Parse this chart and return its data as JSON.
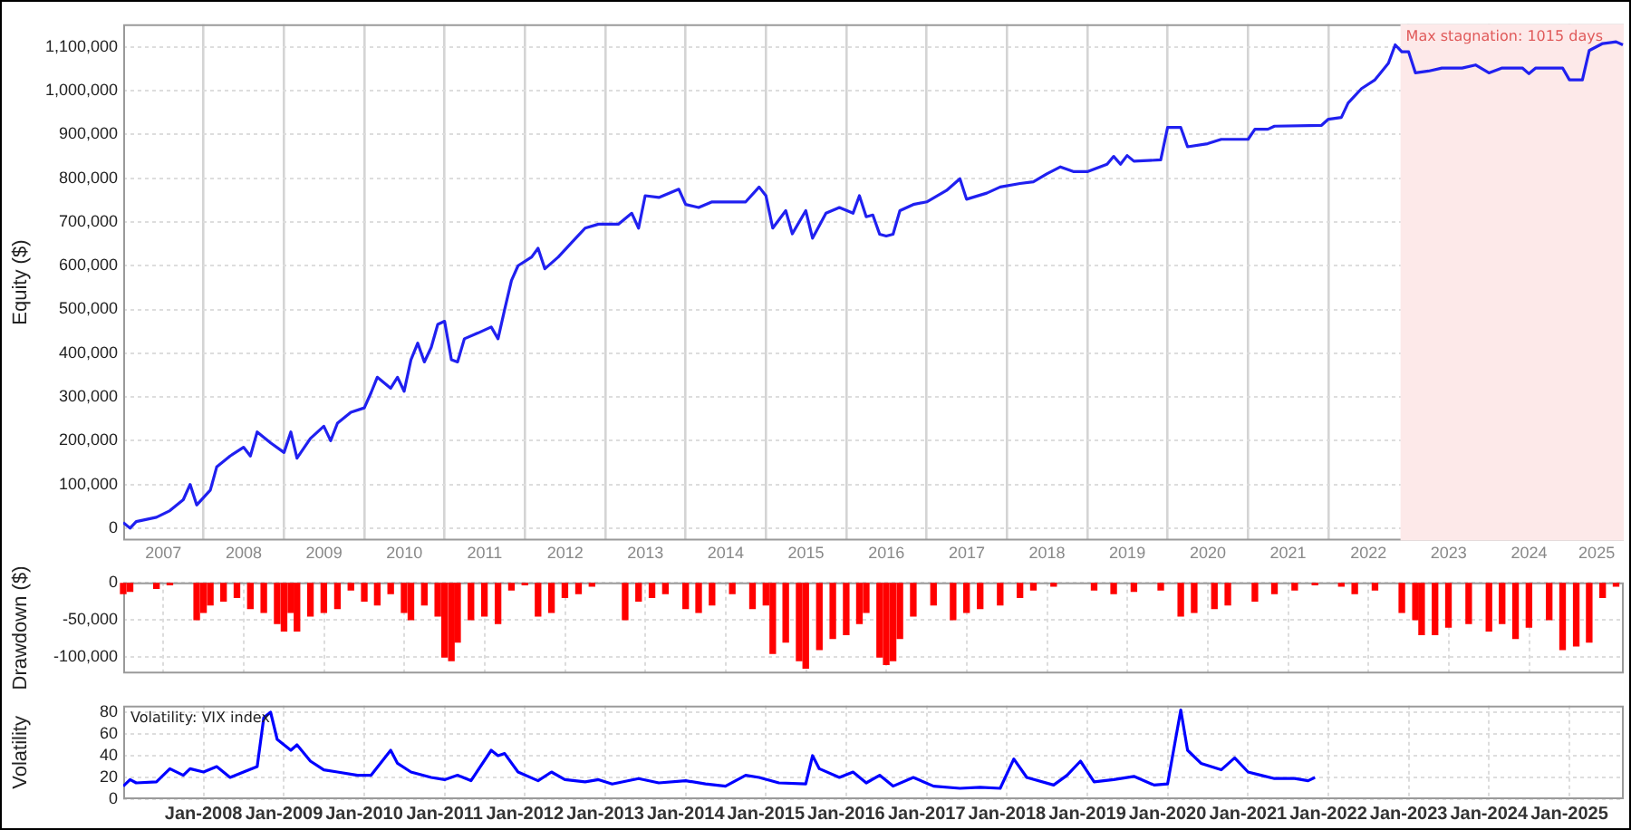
{
  "chart_data": [
    {
      "type": "line",
      "ylabel": "Equity ($)",
      "marker": "none",
      "grid": true,
      "xlim": [
        "2007-01-01",
        "2025-09-05"
      ],
      "xticks": [
        {
          "value": "2007-07-02",
          "label": "2007"
        },
        {
          "value": "2008-01-01",
          "label": null
        },
        {
          "value": "2008-07-02",
          "label": "2008"
        },
        {
          "value": "2009-01-01",
          "label": null
        },
        {
          "value": "2009-07-02",
          "label": "2009"
        },
        {
          "value": "2010-01-01",
          "label": null
        },
        {
          "value": "2010-07-02",
          "label": "2010"
        },
        {
          "value": "2011-01-01",
          "label": null
        },
        {
          "value": "2011-07-02",
          "label": "2011"
        },
        {
          "value": "2012-01-01",
          "label": null
        },
        {
          "value": "2012-07-02",
          "label": "2012"
        },
        {
          "value": "2013-01-01",
          "label": null
        },
        {
          "value": "2013-07-02",
          "label": "2013"
        },
        {
          "value": "2014-01-01",
          "label": null
        },
        {
          "value": "2014-07-02",
          "label": "2014"
        },
        {
          "value": "2015-01-01",
          "label": null
        },
        {
          "value": "2015-07-02",
          "label": "2015"
        },
        {
          "value": "2016-01-01",
          "label": null
        },
        {
          "value": "2016-07-02",
          "label": "2016"
        },
        {
          "value": "2017-01-01",
          "label": null
        },
        {
          "value": "2017-07-02",
          "label": "2017"
        },
        {
          "value": "2018-01-01",
          "label": null
        },
        {
          "value": "2018-07-02",
          "label": "2018"
        },
        {
          "value": "2019-01-01",
          "label": null
        },
        {
          "value": "2019-07-02",
          "label": "2019"
        },
        {
          "value": "2020-01-01",
          "label": null
        },
        {
          "value": "2020-07-02",
          "label": "2020"
        },
        {
          "value": "2021-01-01",
          "label": null
        },
        {
          "value": "2021-07-02",
          "label": "2021"
        },
        {
          "value": "2022-01-01",
          "label": null
        },
        {
          "value": "2022-07-02",
          "label": "2022"
        },
        {
          "value": "2023-01-01",
          "label": null
        },
        {
          "value": "2023-07-02",
          "label": "2023"
        },
        {
          "value": "2024-01-01",
          "label": null
        },
        {
          "value": "2024-07-02",
          "label": "2024"
        },
        {
          "value": "2025-01-01",
          "label": null
        },
        {
          "value": "2025-05-05",
          "label": "2025"
        }
      ],
      "ylim": [
        -28000,
        1152000
      ],
      "yticks": [
        0,
        {
          "value": 100000,
          "label": "100,000"
        },
        {
          "value": 200000,
          "label": "200,000"
        },
        {
          "value": 300000,
          "label": "300,000"
        },
        {
          "value": 400000,
          "label": "400,000"
        },
        {
          "value": 500000,
          "label": "500,000"
        },
        {
          "value": 600000,
          "label": "600,000"
        },
        {
          "value": 700000,
          "label": "700,000"
        },
        {
          "value": 800000,
          "label": "800,000"
        },
        {
          "value": 900000,
          "label": "900,000"
        },
        {
          "value": 1000000,
          "label": "1,000,000"
        },
        {
          "value": 1100000,
          "label": "1,100,000"
        }
      ],
      "bands": [
        {
          "axis": "x",
          "from": "2022-11-25",
          "to": "2025-09-05",
          "label": "Max stagnation: 1015 days",
          "color": "#fde9e9"
        }
      ],
      "series": [
        {
          "color": "#2020f0",
          "x": [
            "2007-01",
            "2007-02",
            "2007-03",
            "2007-06",
            "2007-08",
            "2007-10",
            "2007-11",
            "2007-12",
            "2008-02",
            "2008-03",
            "2008-05",
            "2008-07",
            "2008-08",
            "2008-09",
            "2008-11",
            "2009-01",
            "2009-02",
            "2009-03",
            "2009-05",
            "2009-07",
            "2009-08",
            "2009-09",
            "2009-11",
            "2010-01",
            "2010-02",
            "2010-03",
            "2010-05",
            "2010-06",
            "2010-07",
            "2010-08",
            "2010-09",
            "2010-10",
            "2010-11",
            "2010-12",
            "2011-01",
            "2011-02",
            "2011-03",
            "2011-04",
            "2011-06",
            "2011-08",
            "2011-09",
            "2011-10",
            "2011-11",
            "2011-12",
            "2012-02",
            "2012-03",
            "2012-04",
            "2012-06",
            "2012-08",
            "2012-10",
            "2012-12",
            "2013-03",
            "2013-05",
            "2013-06",
            "2013-07",
            "2013-09",
            "2013-12",
            "2014-01",
            "2014-03",
            "2014-05",
            "2014-10",
            "2014-12",
            "2015-01",
            "2015-02",
            "2015-04",
            "2015-05",
            "2015-07",
            "2015-08",
            "2015-10",
            "2015-12",
            "2016-02",
            "2016-03",
            "2016-04",
            "2016-05",
            "2016-06",
            "2016-07",
            "2016-08",
            "2016-09",
            "2016-11",
            "2017-01",
            "2017-04",
            "2017-06",
            "2017-07",
            "2017-10",
            "2017-12",
            "2018-03",
            "2018-05",
            "2018-07",
            "2018-09",
            "2018-11",
            "2019-01",
            "2019-04",
            "2019-05",
            "2019-06",
            "2019-07",
            "2019-08",
            "2019-12",
            "2020-01",
            "2020-03",
            "2020-04",
            "2020-07",
            "2020-09",
            "2021-01",
            "2021-02",
            "2021-04",
            "2021-05",
            "2021-12",
            "2022-01",
            "2022-03",
            "2022-04",
            "2022-06",
            "2022-08",
            "2022-10",
            "2022-11",
            "2022-12",
            "2023-01",
            "2023-02",
            "2023-04",
            "2023-06",
            "2023-09",
            "2023-11",
            "2024-01",
            "2024-03",
            "2024-06",
            "2024-07",
            "2024-08",
            "2024-12",
            "2025-01",
            "2025-03",
            "2025-04",
            "2025-06",
            "2025-08",
            "2025-09"
          ],
          "values": [
            13000,
            0,
            15000,
            25000,
            40000,
            65000,
            100000,
            53000,
            87000,
            140000,
            165000,
            185000,
            165000,
            220000,
            195000,
            173000,
            220000,
            160000,
            205000,
            233000,
            200000,
            240000,
            265000,
            275000,
            310000,
            345000,
            320000,
            345000,
            313000,
            385000,
            423000,
            380000,
            413000,
            466000,
            473000,
            385000,
            380000,
            433000,
            446000,
            460000,
            433000,
            500000,
            566000,
            600000,
            620000,
            640000,
            593000,
            620000,
            653000,
            686000,
            695000,
            695000,
            720000,
            686000,
            760000,
            756000,
            775000,
            740000,
            733000,
            746000,
            746000,
            780000,
            760000,
            686000,
            726000,
            673000,
            726000,
            663000,
            720000,
            733000,
            720000,
            760000,
            712000,
            716000,
            672000,
            668000,
            672000,
            726000,
            740000,
            746000,
            772000,
            799000,
            752000,
            766000,
            780000,
            788000,
            792000,
            810000,
            826000,
            815000,
            815000,
            832000,
            850000,
            832000,
            852000,
            839000,
            842000,
            916000,
            916000,
            872000,
            879000,
            889000,
            889000,
            912000,
            912000,
            919000,
            921000,
            935000,
            939000,
            972000,
            1005000,
            1025000,
            1063000,
            1105000,
            1089000,
            1089000,
            1041000,
            1045000,
            1052000,
            1052000,
            1059000,
            1041000,
            1052000,
            1052000,
            1039000,
            1052000,
            1052000,
            1025000,
            1025000,
            1092000,
            1108000,
            1112000,
            1105000
          ]
        }
      ]
    },
    {
      "type": "bar",
      "ylabel": "Drawdown ($)",
      "grid": true,
      "tick_labels": "y",
      "xlim": [
        "2007-01-01",
        "2025-09-05"
      ],
      "xticks": [
        {
          "value": "2008-01-01",
          "label": null
        },
        {
          "value": "2009-01-01",
          "label": null
        },
        {
          "value": "2010-01-01",
          "label": null
        },
        {
          "value": "2011-01-01",
          "label": null
        },
        {
          "value": "2012-01-01",
          "label": null
        },
        {
          "value": "2013-01-01",
          "label": null
        },
        {
          "value": "2014-01-01",
          "label": null
        },
        {
          "value": "2015-01-01",
          "label": null
        },
        {
          "value": "2016-01-01",
          "label": null
        },
        {
          "value": "2017-01-01",
          "label": null
        },
        {
          "value": "2018-01-01",
          "label": null
        },
        {
          "value": "2019-01-01",
          "label": null
        },
        {
          "value": "2020-01-01",
          "label": null
        },
        {
          "value": "2021-01-01",
          "label": null
        },
        {
          "value": "2022-01-01",
          "label": null
        },
        {
          "value": "2023-01-01",
          "label": null
        },
        {
          "value": "2024-01-01",
          "label": null
        },
        {
          "value": "2025-01-01",
          "label": null
        }
      ],
      "ylim": [
        -122000,
        0
      ],
      "yticks": [
        0,
        {
          "value": -50000,
          "label": "-50,000"
        },
        {
          "value": -100000,
          "label": "-100,000"
        }
      ],
      "series": [
        {
          "color": "#ff0000",
          "x": [
            "2007-01",
            "2007-02",
            "2007-06",
            "2007-08",
            "2007-12",
            "2008-01",
            "2008-02",
            "2008-04",
            "2008-06",
            "2008-08",
            "2008-10",
            "2008-12",
            "2009-01",
            "2009-02",
            "2009-03",
            "2009-05",
            "2009-07",
            "2009-09",
            "2009-11",
            "2010-01",
            "2010-03",
            "2010-05",
            "2010-07",
            "2010-08",
            "2010-10",
            "2010-12",
            "2011-01",
            "2011-02",
            "2011-03",
            "2011-05",
            "2011-07",
            "2011-09",
            "2011-11",
            "2012-01",
            "2012-03",
            "2012-05",
            "2012-07",
            "2012-09",
            "2012-11",
            "2013-04",
            "2013-06",
            "2013-08",
            "2013-10",
            "2014-01",
            "2014-03",
            "2014-05",
            "2014-08",
            "2014-11",
            "2015-01",
            "2015-02",
            "2015-04",
            "2015-06",
            "2015-07",
            "2015-09",
            "2015-11",
            "2016-01",
            "2016-03",
            "2016-04",
            "2016-06",
            "2016-07",
            "2016-08",
            "2016-09",
            "2016-11",
            "2017-02",
            "2017-05",
            "2017-07",
            "2017-09",
            "2017-12",
            "2018-03",
            "2018-05",
            "2018-08",
            "2019-02",
            "2019-05",
            "2019-08",
            "2019-12",
            "2020-03",
            "2020-05",
            "2020-08",
            "2020-10",
            "2021-02",
            "2021-05",
            "2021-08",
            "2021-11",
            "2022-03",
            "2022-05",
            "2022-08",
            "2022-12",
            "2023-02",
            "2023-03",
            "2023-05",
            "2023-07",
            "2023-10",
            "2024-01",
            "2024-03",
            "2024-05",
            "2024-07",
            "2024-10",
            "2024-12",
            "2025-02",
            "2025-04",
            "2025-06",
            "2025-08"
          ],
          "values": [
            -15000,
            -12000,
            -8000,
            -3000,
            -50000,
            -40000,
            -30000,
            -25000,
            -20000,
            -35000,
            -40000,
            -55000,
            -65000,
            -40000,
            -65000,
            -45000,
            -40000,
            -35000,
            -10000,
            -25000,
            -30000,
            -15000,
            -40000,
            -50000,
            -30000,
            -45000,
            -100000,
            -105000,
            -80000,
            -50000,
            -45000,
            -55000,
            -10000,
            -3000,
            -45000,
            -40000,
            -20000,
            -15000,
            -5000,
            -50000,
            -25000,
            -20000,
            -15000,
            -35000,
            -40000,
            -30000,
            -15000,
            -35000,
            -30000,
            -95000,
            -80000,
            -105000,
            -115000,
            -90000,
            -75000,
            -70000,
            -55000,
            -40000,
            -100000,
            -110000,
            -105000,
            -75000,
            -45000,
            -30000,
            -50000,
            -40000,
            -35000,
            -30000,
            -20000,
            -10000,
            -5000,
            -10000,
            -15000,
            -12000,
            -10000,
            -45000,
            -40000,
            -35000,
            -30000,
            -25000,
            -15000,
            -10000,
            -3000,
            -5000,
            -15000,
            -10000,
            -40000,
            -50000,
            -70000,
            -70000,
            -60000,
            -55000,
            -65000,
            -55000,
            -75000,
            -60000,
            -50000,
            -90000,
            -85000,
            -80000,
            -20000,
            -5000
          ]
        }
      ]
    },
    {
      "type": "line",
      "ylabel": "Volatility",
      "marker": "none",
      "grid": true,
      "annotations": [
        "Volatility: VIX index"
      ],
      "xlim": [
        "2007-01-01",
        "2025-09-05"
      ],
      "xticks": [
        {
          "value": "2008-01-01",
          "label": "Jan-2008"
        },
        {
          "value": "2009-01-01",
          "label": "Jan-2009"
        },
        {
          "value": "2010-01-01",
          "label": "Jan-2010"
        },
        {
          "value": "2011-01-01",
          "label": "Jan-2011"
        },
        {
          "value": "2012-01-01",
          "label": "Jan-2012"
        },
        {
          "value": "2013-01-01",
          "label": "Jan-2013"
        },
        {
          "value": "2014-01-01",
          "label": "Jan-2014"
        },
        {
          "value": "2015-01-01",
          "label": "Jan-2015"
        },
        {
          "value": "2016-01-01",
          "label": "Jan-2016"
        },
        {
          "value": "2017-01-01",
          "label": "Jan-2017"
        },
        {
          "value": "2018-01-01",
          "label": "Jan-2018"
        },
        {
          "value": "2019-01-01",
          "label": "Jan-2019"
        },
        {
          "value": "2020-01-01",
          "label": "Jan-2020"
        },
        {
          "value": "2021-01-01",
          "label": "Jan-2021"
        },
        {
          "value": "2022-01-01",
          "label": "Jan-2022"
        },
        {
          "value": "2023-01-01",
          "label": "Jan-2023"
        },
        {
          "value": "2024-01-01",
          "label": "Jan-2024"
        },
        {
          "value": "2025-01-01",
          "label": "Jan-2025"
        }
      ],
      "ylim": [
        0,
        86
      ],
      "yticks": [
        0,
        20,
        40,
        60,
        80
      ],
      "series": [
        {
          "color": "#0000ff",
          "x": [
            "2007-01",
            "2007-02",
            "2007-03",
            "2007-06",
            "2007-08",
            "2007-10",
            "2007-11",
            "2008-01",
            "2008-03",
            "2008-05",
            "2008-07",
            "2008-09",
            "2008-10",
            "2008-11",
            "2008-12",
            "2009-02",
            "2009-03",
            "2009-05",
            "2009-07",
            "2009-09",
            "2009-12",
            "2010-02",
            "2010-05",
            "2010-06",
            "2010-08",
            "2010-11",
            "2011-01",
            "2011-03",
            "2011-05",
            "2011-08",
            "2011-09",
            "2011-10",
            "2011-12",
            "2012-03",
            "2012-05",
            "2012-07",
            "2012-10",
            "2012-12",
            "2013-02",
            "2013-06",
            "2013-09",
            "2014-01",
            "2014-04",
            "2014-07",
            "2014-10",
            "2014-12",
            "2015-03",
            "2015-07",
            "2015-08",
            "2015-09",
            "2015-12",
            "2016-02",
            "2016-04",
            "2016-06",
            "2016-08",
            "2016-11",
            "2017-02",
            "2017-06",
            "2017-09",
            "2017-12",
            "2018-02",
            "2018-04",
            "2018-08",
            "2018-10",
            "2018-12",
            "2019-02",
            "2019-05",
            "2019-08",
            "2019-11",
            "2020-01",
            "2020-03",
            "2020-04",
            "2020-06",
            "2020-09",
            "2020-11",
            "2021-01",
            "2021-03",
            "2021-05",
            "2021-08",
            "2021-10",
            "2021-11"
          ],
          "values": [
            12,
            18,
            15,
            16,
            28,
            22,
            28,
            25,
            30,
            20,
            25,
            30,
            75,
            80,
            55,
            45,
            50,
            35,
            27,
            25,
            22,
            22,
            45,
            33,
            25,
            20,
            18,
            22,
            17,
            45,
            40,
            42,
            25,
            17,
            25,
            18,
            16,
            18,
            14,
            19,
            15,
            17,
            14,
            12,
            22,
            20,
            15,
            14,
            40,
            28,
            20,
            25,
            15,
            22,
            12,
            20,
            12,
            10,
            11,
            10,
            37,
            20,
            13,
            22,
            35,
            16,
            18,
            21,
            13,
            14,
            82,
            45,
            33,
            27,
            38,
            25,
            22,
            19,
            19,
            17,
            20
          ]
        }
      ]
    }
  ]
}
